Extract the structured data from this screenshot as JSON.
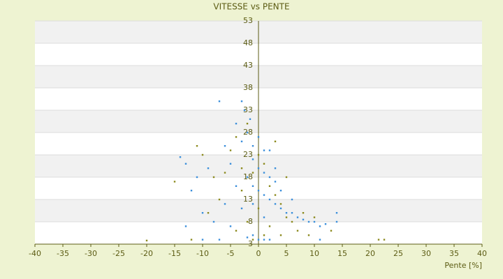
{
  "chart_data": {
    "type": "scatter",
    "title": "VITESSE vs PENTE",
    "x_label": "Pente [%]",
    "xlim": [
      -40,
      40
    ],
    "xticks": [
      -40,
      -35,
      -30,
      -25,
      -20,
      -15,
      -10,
      -5,
      0,
      5,
      10,
      15,
      20,
      25,
      30,
      35,
      40
    ],
    "ylim": [
      3,
      53
    ],
    "yticks": [
      3,
      8,
      13,
      18,
      23,
      28,
      33,
      38,
      43,
      48,
      53
    ],
    "grid": true,
    "series": [
      {
        "color": "#3b8fdb",
        "x": [
          -3,
          -2.5,
          -1.5,
          -7,
          -4,
          -14,
          -13,
          -11,
          -9,
          -6,
          -5,
          -3,
          -2,
          -1,
          0,
          1,
          -1,
          0,
          1,
          2,
          3,
          -2,
          -1,
          0,
          1,
          2,
          3,
          4,
          5,
          6,
          7,
          8,
          9,
          10,
          11,
          12,
          14,
          14,
          -12,
          -10,
          -8,
          -6,
          -3,
          -1,
          0,
          1,
          2,
          -2,
          -7,
          -10,
          11,
          -13,
          3,
          2,
          -4,
          6,
          4,
          -1,
          1,
          -5
        ],
        "values": [
          35,
          33,
          31,
          35,
          30,
          22.5,
          21,
          18,
          20,
          25,
          21,
          26,
          28,
          25,
          27,
          24,
          22,
          20,
          19,
          18,
          17,
          18,
          16,
          15,
          14,
          13,
          12,
          11,
          10,
          10,
          9,
          8.5,
          8,
          8,
          7,
          7.5,
          8,
          10,
          15,
          10,
          8,
          12,
          11,
          5,
          4,
          4,
          4,
          4.5,
          4,
          4,
          4,
          7,
          20,
          24,
          16,
          13,
          15,
          12,
          9,
          7
        ]
      },
      {
        "color": "#8c8a1e",
        "x": [
          -20,
          -12,
          -15,
          -10,
          -8,
          -5,
          -4,
          -2,
          -3,
          -1,
          0,
          1,
          2,
          3,
          4,
          5,
          6,
          8,
          10,
          13,
          21.5,
          22.5,
          -7,
          -9,
          -4,
          -2,
          0,
          2,
          -1,
          1,
          4,
          7,
          9,
          -6,
          -11,
          -3,
          3,
          5
        ],
        "values": [
          3.8,
          4,
          17,
          23,
          18,
          24,
          27,
          30,
          20,
          19,
          23,
          21,
          16,
          14,
          12,
          9,
          8,
          10,
          9,
          6,
          4,
          4,
          13,
          10,
          6,
          8,
          11,
          7,
          4,
          5,
          5,
          6,
          5,
          19,
          25,
          15,
          26,
          18
        ]
      }
    ]
  }
}
